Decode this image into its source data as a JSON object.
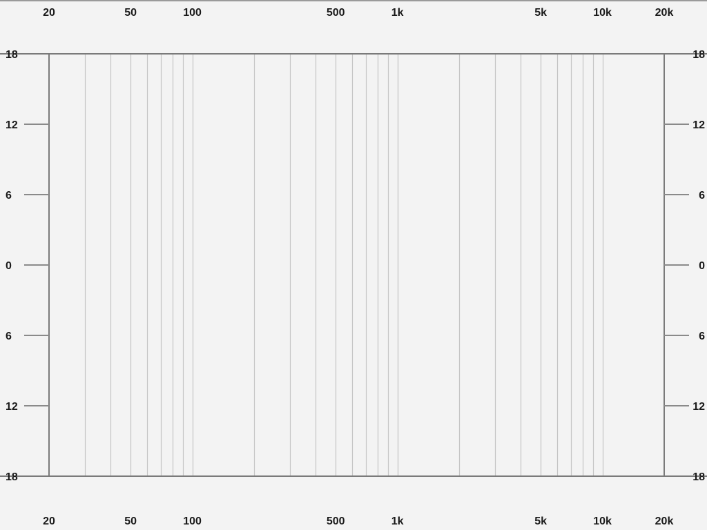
{
  "chart_data": {
    "type": "line",
    "title": "",
    "xlabel": "",
    "ylabel": "",
    "x_scale": "log",
    "xlim": [
      20,
      20000
    ],
    "ylim": [
      -18,
      18
    ],
    "grid": true,
    "x_major_ticks": [
      {
        "value": 20,
        "label": "20"
      },
      {
        "value": 50,
        "label": "50"
      },
      {
        "value": 100,
        "label": "100"
      },
      {
        "value": 500,
        "label": "500"
      },
      {
        "value": 1000,
        "label": "1k"
      },
      {
        "value": 5000,
        "label": "5k"
      },
      {
        "value": 10000,
        "label": "10k"
      },
      {
        "value": 20000,
        "label": "20k"
      }
    ],
    "x_grid_values": [
      30,
      40,
      50,
      60,
      70,
      80,
      90,
      100,
      200,
      300,
      400,
      500,
      600,
      700,
      800,
      900,
      1000,
      2000,
      3000,
      4000,
      5000,
      6000,
      7000,
      8000,
      9000,
      10000
    ],
    "y_ticks": [
      {
        "value": 18,
        "label": "18"
      },
      {
        "value": 12,
        "label": "12"
      },
      {
        "value": 6,
        "label": "6"
      },
      {
        "value": 0,
        "label": "0"
      },
      {
        "value": -6,
        "label": "6"
      },
      {
        "value": -12,
        "label": "12"
      },
      {
        "value": -18,
        "label": "18"
      }
    ],
    "series": []
  },
  "colors": {
    "background": "#f3f3f3",
    "frame": "#7a7a7a",
    "minor_grid": "#c4c4c4",
    "tick_mark": "#8a8a8a",
    "label": "#1a1a1a"
  }
}
